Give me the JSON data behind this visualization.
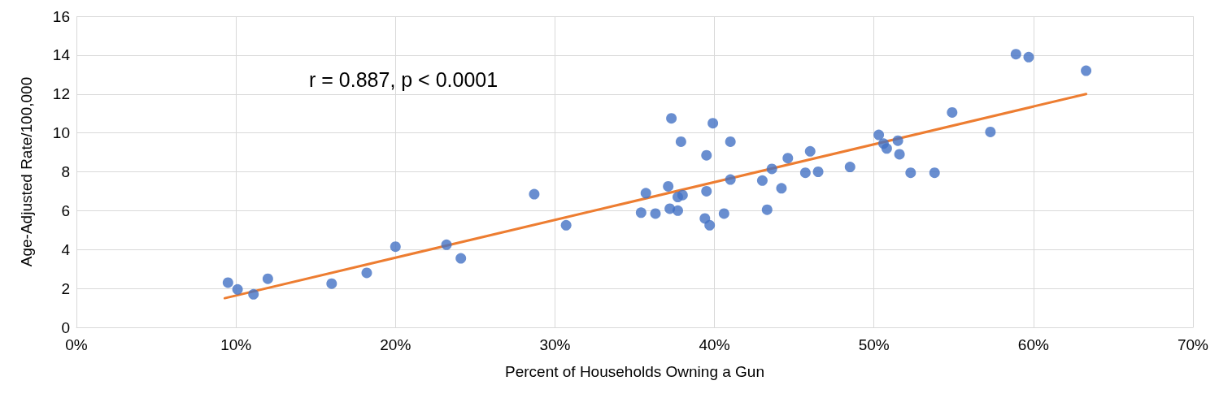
{
  "chart_data": {
    "type": "scatter",
    "xlabel": "Percent of Households Owning a Gun",
    "ylabel": "Age-Adjusted Rate/100,000",
    "annotations": [
      "r = 0.887, p < 0.0001"
    ],
    "xlim": [
      0,
      70
    ],
    "xticks": [
      {
        "value": 0,
        "label": "0%"
      },
      {
        "value": 10,
        "label": "10%"
      },
      {
        "value": 20,
        "label": "20%"
      },
      {
        "value": 30,
        "label": "30%"
      },
      {
        "value": 40,
        "label": "40%"
      },
      {
        "value": 50,
        "label": "50%"
      },
      {
        "value": 60,
        "label": "60%"
      },
      {
        "value": 70,
        "label": "70%"
      }
    ],
    "ylim": [
      0,
      16
    ],
    "yticks": [
      0,
      2,
      4,
      6,
      8,
      10,
      12,
      14,
      16
    ],
    "grid": true,
    "marker": "circle",
    "series": [
      {
        "color": "#4472c4",
        "x": [
          9.5,
          10.1,
          11.1,
          12.0,
          16.0,
          18.2,
          20.0,
          23.2,
          24.1,
          28.7,
          30.7,
          35.4,
          35.7,
          36.3,
          37.1,
          37.3,
          37.2,
          37.7,
          37.7,
          37.9,
          38.0,
          39.4,
          39.5,
          39.5,
          39.7,
          39.9,
          40.6,
          41.0,
          41.0,
          43.0,
          43.3,
          43.6,
          44.2,
          44.6,
          45.7,
          46.0,
          46.5,
          48.5,
          50.3,
          50.6,
          50.8,
          51.5,
          51.6,
          52.3,
          53.8,
          54.9,
          57.3,
          58.9,
          59.7,
          63.3
        ],
        "values": [
          2.3,
          1.95,
          1.7,
          2.5,
          2.25,
          2.8,
          4.15,
          4.25,
          3.55,
          6.85,
          5.25,
          5.9,
          6.9,
          5.85,
          7.25,
          10.75,
          6.1,
          6.0,
          6.7,
          9.55,
          6.8,
          5.6,
          8.85,
          7.0,
          5.25,
          10.5,
          5.85,
          9.55,
          7.6,
          7.55,
          6.05,
          8.15,
          7.15,
          8.7,
          7.95,
          9.05,
          8.0,
          8.25,
          9.9,
          9.45,
          9.2,
          9.6,
          8.9,
          7.95,
          7.95,
          11.05,
          10.05,
          14.05,
          13.9,
          13.2
        ]
      },
      {
        "type": "line",
        "color": "#ed7d31",
        "marker": "none",
        "x": [
          9.3,
          63.3
        ],
        "values": [
          1.5,
          12.0
        ]
      }
    ]
  }
}
